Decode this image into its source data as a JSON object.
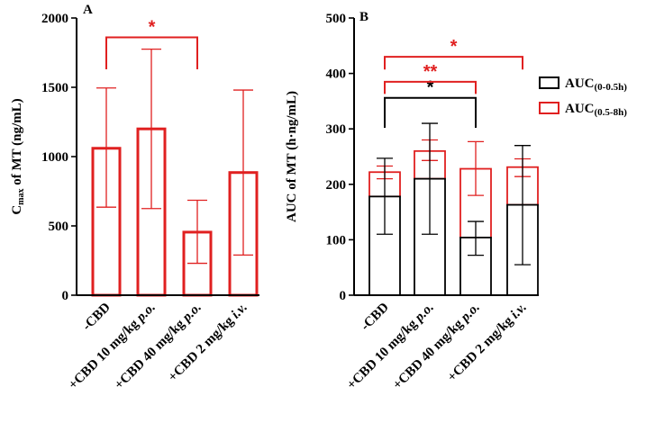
{
  "colors": {
    "red": "#e02020",
    "black": "#000000"
  },
  "chart_data": [
    {
      "panel": "A",
      "type": "bar",
      "ylabel_main": "C",
      "ylabel_sub": "max",
      "ylabel_rest": " of MT (ng/mL)",
      "ylim": [
        0,
        2000
      ],
      "yticks": [
        "0",
        "500",
        "1000",
        "1500",
        "2000"
      ],
      "categories": [
        {
          "lead": "-CBD"
        },
        {
          "lead": "+CBD 10 mg/kg ",
          "ital": "p.o."
        },
        {
          "lead": "+CBD 40 mg/kg ",
          "ital": "p.o."
        },
        {
          "lead": "+CBD 2 mg/kg ",
          "ital": "i.v."
        }
      ],
      "values": [
        1060,
        1200,
        455,
        885
      ],
      "err_low": [
        635,
        625,
        230,
        290
      ],
      "err_high": [
        1495,
        1775,
        685,
        1480
      ],
      "significance": [
        {
          "from": 0,
          "to": 2,
          "label": "*",
          "color": "red"
        }
      ]
    },
    {
      "panel": "B",
      "type": "stacked-bar",
      "ylabel": "AUC of MT (h·ng/mL)",
      "ylim": [
        0,
        500
      ],
      "yticks": [
        "0",
        "100",
        "200",
        "300",
        "400",
        "500"
      ],
      "categories": [
        {
          "lead": "-CBD"
        },
        {
          "lead": "+CBD 10 mg/kg ",
          "ital": "p.o."
        },
        {
          "lead": "+CBD 40 mg/kg ",
          "ital": "p.o."
        },
        {
          "lead": "+CBD 2 mg/kg ",
          "ital": "i.v."
        }
      ],
      "series": [
        {
          "name_main": "AUC",
          "name_sub": "(0-0.5h)",
          "color": "black",
          "values": [
            178,
            210,
            104,
            163
          ],
          "err_low": [
            110,
            110,
            72,
            55
          ],
          "err_high": [
            247,
            310,
            133,
            270
          ]
        },
        {
          "name_main": "AUC",
          "name_sub": "(0.5-8h)",
          "color": "red",
          "values": [
            44,
            50,
            124,
            68
          ],
          "totals": [
            222,
            260,
            228,
            231
          ],
          "err_low": [
            210,
            243,
            180,
            214
          ],
          "err_high": [
            233,
            280,
            277,
            246
          ]
        }
      ],
      "significance": [
        {
          "from": 0,
          "to": 2,
          "label": "*",
          "color": "black"
        },
        {
          "from": 0,
          "to": 2,
          "label": "**",
          "color": "red"
        },
        {
          "from": 0,
          "to": 3,
          "label": "*",
          "color": "red"
        }
      ]
    }
  ]
}
